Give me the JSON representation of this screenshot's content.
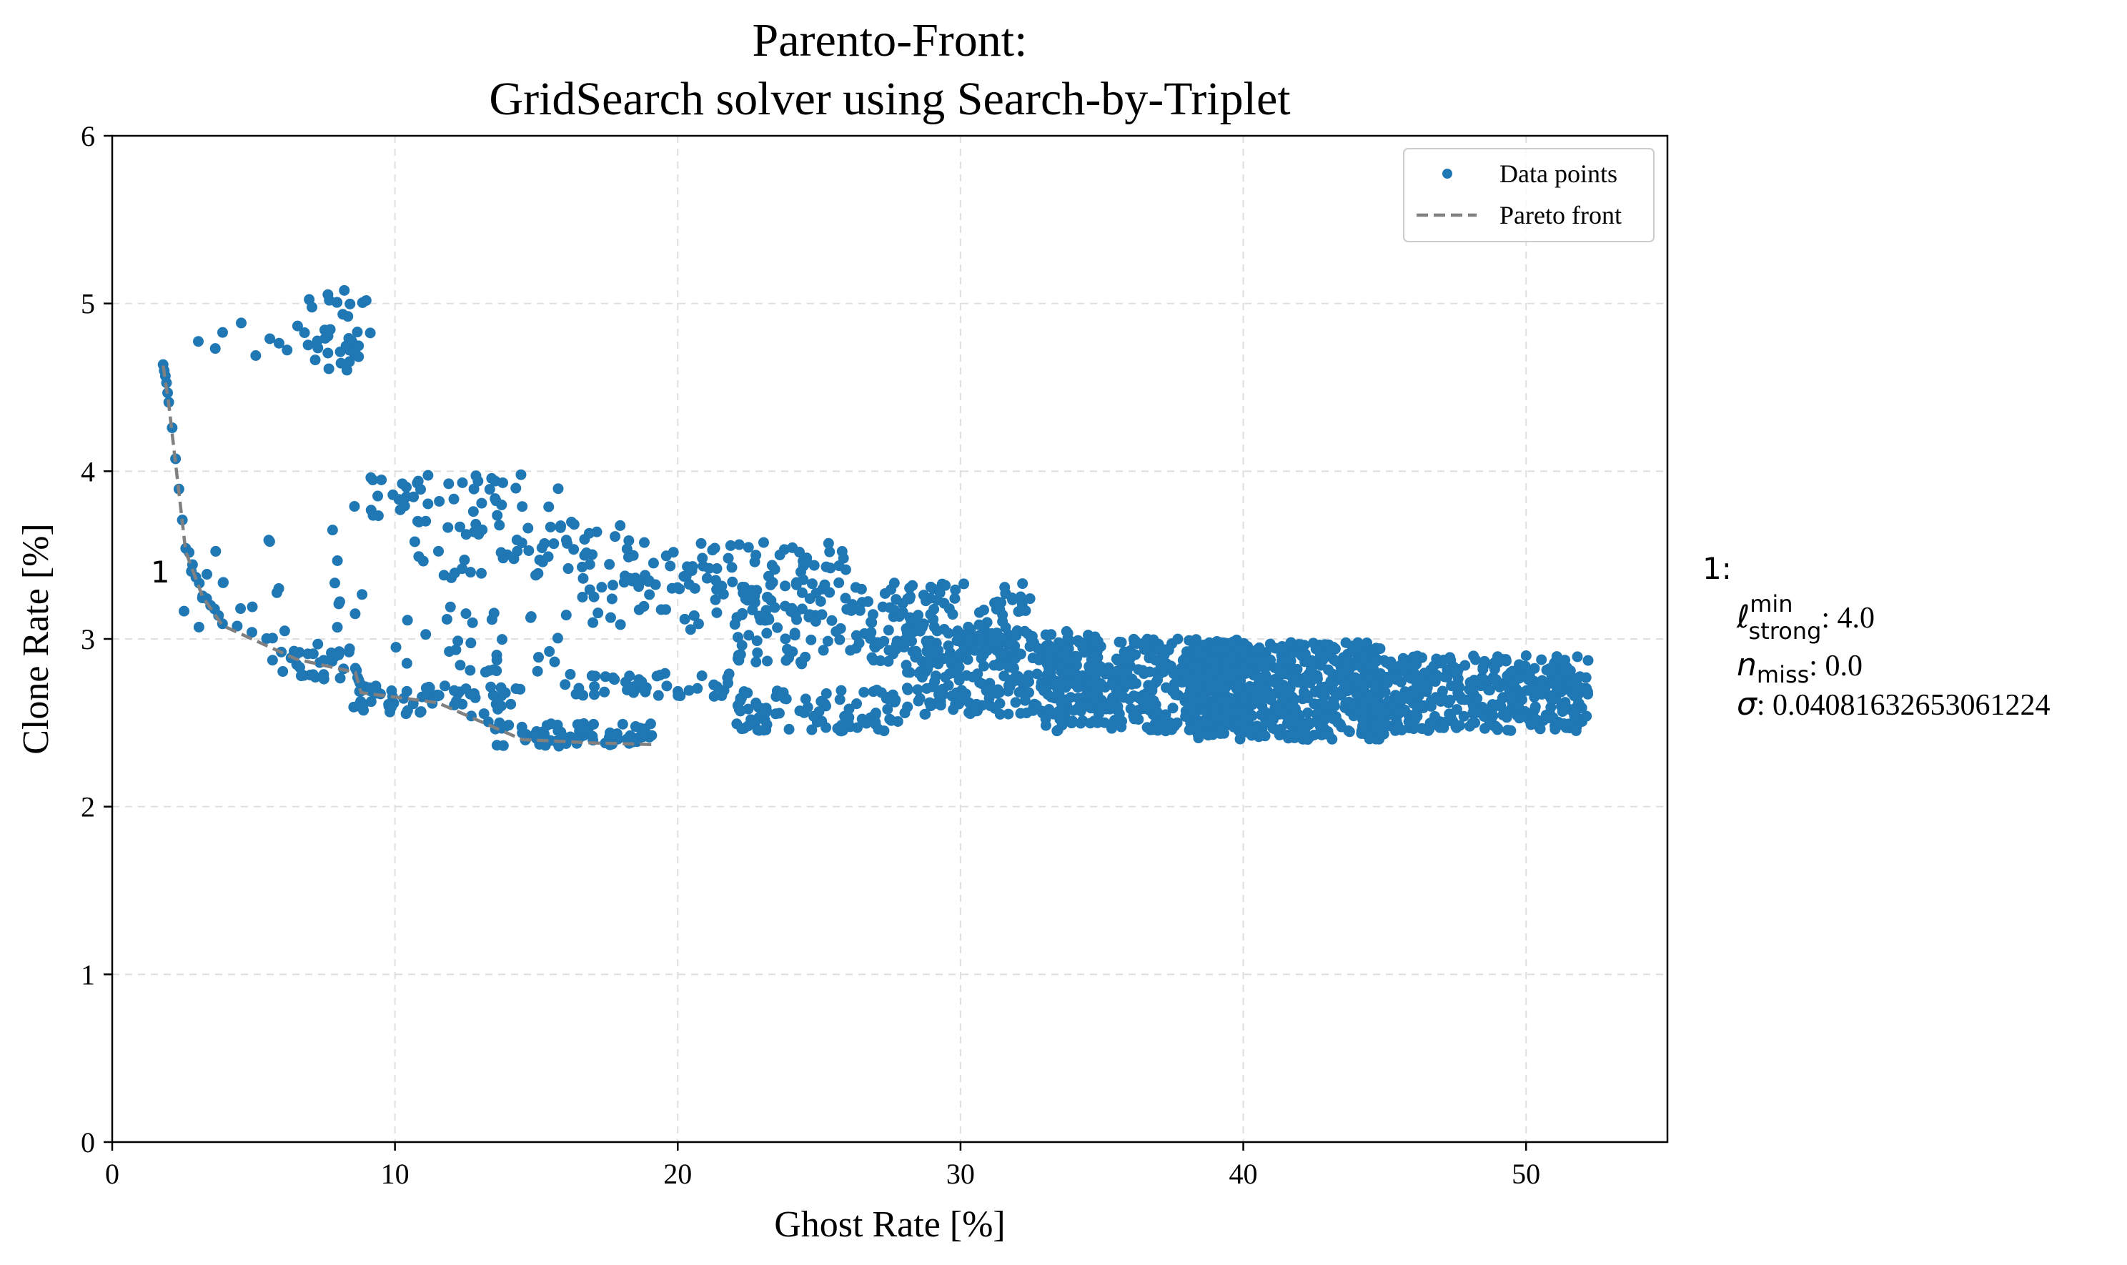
{
  "chart_data": {
    "type": "scatter",
    "title_line1": "Parento-Front:",
    "title_line2": "GridSearch solver using Search-by-Triplet",
    "xlabel": "Ghost Rate [%]",
    "ylabel": "Clone Rate [%]",
    "xlim": [
      0,
      55
    ],
    "ylim": [
      0,
      6
    ],
    "xticks": [
      0,
      10,
      20,
      30,
      40,
      50
    ],
    "yticks": [
      0,
      1,
      2,
      3,
      4,
      5,
      6
    ],
    "grid": true,
    "legend_position": "top-right",
    "legend": {
      "points": "Data points",
      "front": "Pareto front"
    },
    "colors": {
      "points": "#1f77b4",
      "front": "#808080"
    },
    "series": [
      {
        "name": "Data points",
        "clusters": [
          {
            "x": [
              6.5,
              9.2
            ],
            "y": [
              4.6,
              5.08
            ],
            "n": 40
          },
          {
            "x": [
              3.0,
              6.2
            ],
            "y": [
              4.55,
              4.9
            ],
            "n": 8
          },
          {
            "x": [
              8.5,
              16.0
            ],
            "y": [
              3.7,
              3.98
            ],
            "n": 45
          },
          {
            "x": [
              10.5,
              18.5
            ],
            "y": [
              3.35,
              3.7
            ],
            "n": 60
          },
          {
            "x": [
              18.0,
              26.0
            ],
            "y": [
              3.3,
              3.58
            ],
            "n": 70
          },
          {
            "x": [
              5.0,
              9.0
            ],
            "y": [
              3.0,
              3.7
            ],
            "n": 14
          },
          {
            "x": [
              10.0,
              16.0
            ],
            "y": [
              2.8,
              3.2
            ],
            "n": 30
          },
          {
            "x": [
              16.0,
              22.0
            ],
            "y": [
              3.05,
              3.35
            ],
            "n": 30
          },
          {
            "x": [
              22.0,
              32.5
            ],
            "y": [
              2.85,
              3.35
            ],
            "n": 220
          },
          {
            "x": [
              16.0,
              22.0
            ],
            "y": [
              2.65,
              2.8
            ],
            "n": 45
          },
          {
            "x": [
              22.0,
              28.0
            ],
            "y": [
              2.45,
              2.7
            ],
            "n": 90
          },
          {
            "x": [
              28.0,
              35.0
            ],
            "y": [
              2.55,
              3.05
            ],
            "n": 280
          },
          {
            "x": [
              33.0,
              40.0
            ],
            "y": [
              2.45,
              3.0
            ],
            "n": 380
          },
          {
            "x": [
              38.0,
              45.0
            ],
            "y": [
              2.4,
              2.98
            ],
            "n": 600
          },
          {
            "x": [
              44.0,
              52.2
            ],
            "y": [
              2.45,
              2.9
            ],
            "n": 420
          },
          {
            "x": [
              8.5,
              14.5
            ],
            "y": [
              2.55,
              2.72
            ],
            "n": 60
          },
          {
            "x": [
              13.5,
              19.2
            ],
            "y": [
              2.36,
              2.5
            ],
            "n": 60
          },
          {
            "x": [
              5.5,
              8.5
            ],
            "y": [
              2.76,
              2.98
            ],
            "n": 25
          },
          {
            "x": [
              2.5,
              5.0
            ],
            "y": [
              3.05,
              3.55
            ],
            "n": 10
          }
        ]
      },
      {
        "name": "Pareto front",
        "x": [
          1.8,
          2.0,
          2.6,
          3.2,
          3.9,
          6.5,
          8.6,
          8.8,
          11.5,
          14.5,
          17.0,
          19.2
        ],
        "y": [
          4.63,
          4.4,
          3.52,
          3.25,
          3.08,
          2.88,
          2.8,
          2.68,
          2.62,
          2.4,
          2.38,
          2.37
        ]
      }
    ],
    "annotations": {
      "front_label": "1",
      "front_label_pos": {
        "x": 1.7,
        "y": 3.4
      },
      "side_label": "1:",
      "l_symbol": "ℓ",
      "l_sup": "min",
      "l_sub": "strong",
      "l_value": ": 4.0",
      "n_symbol": "n",
      "n_sub": "miss",
      "n_value": ": 0.0",
      "sigma_symbol": "σ",
      "sigma_value": ": 0.04081632653061224"
    }
  }
}
